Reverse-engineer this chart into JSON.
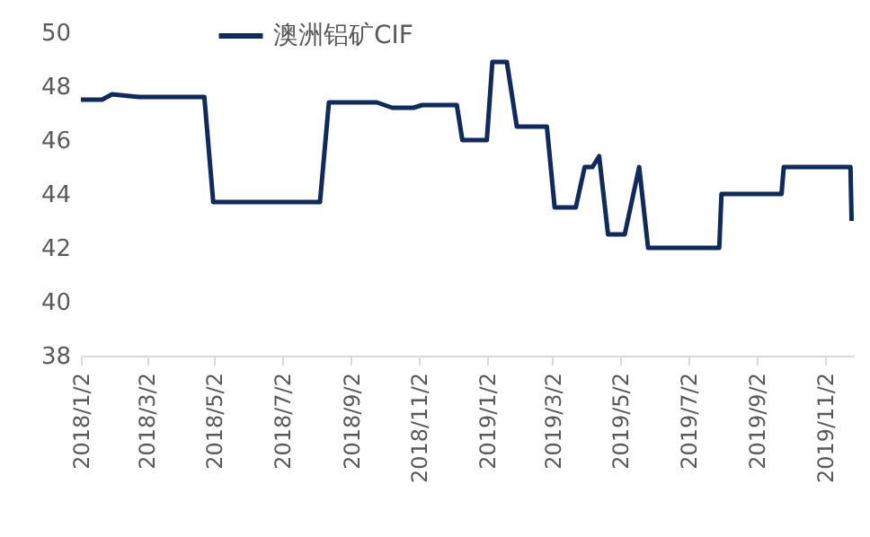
{
  "chart_data": {
    "type": "line",
    "legend": "top",
    "grid": false,
    "marker": "none",
    "line_style": "solid",
    "x": [
      "2018-01-02",
      "2018-01-21",
      "2018-01-30",
      "2018-02-23",
      "2018-04-23",
      "2018-05-01",
      "2018-08-05",
      "2018-08-13",
      "2018-09-25",
      "2018-10-09",
      "2018-10-28",
      "2018-11-05",
      "2018-12-06",
      "2018-12-11",
      "2019-01-02",
      "2019-01-07",
      "2019-01-20",
      "2019-01-29",
      "2019-02-25",
      "2019-03-04",
      "2019-03-23",
      "2019-03-31",
      "2019-04-07",
      "2019-04-13",
      "2019-04-21",
      "2019-05-06",
      "2019-05-19",
      "2019-05-27",
      "2019-07-30",
      "2019-08-01",
      "2019-09-24",
      "2019-09-26",
      "2019-11-25",
      "2019-11-26"
    ],
    "series": [
      {
        "name": "澳洲铝矿CIF",
        "color": "#0e2a5e",
        "values": [
          47.5,
          47.5,
          47.7,
          47.6,
          47.6,
          43.7,
          43.7,
          47.4,
          47.4,
          47.2,
          47.2,
          47.3,
          47.3,
          46,
          46,
          48.9,
          48.9,
          46.5,
          46.5,
          43.5,
          43.5,
          45,
          45,
          45.4,
          42.5,
          42.5,
          45,
          42,
          42,
          44,
          44,
          45,
          45,
          43
        ]
      }
    ],
    "xlim": [
      "2018-01-02",
      "2019-11-28"
    ],
    "xticks": [
      {
        "value": "2018-01-02",
        "label": "2018/1/2"
      },
      {
        "value": "2018-03-02",
        "label": "2018/3/2"
      },
      {
        "value": "2018-05-02",
        "label": "2018/5/2"
      },
      {
        "value": "2018-07-02",
        "label": "2018/7/2"
      },
      {
        "value": "2018-09-02",
        "label": "2018/9/2"
      },
      {
        "value": "2018-11-02",
        "label": "2018/11/2"
      },
      {
        "value": "2019-01-02",
        "label": "2019/1/2"
      },
      {
        "value": "2019-03-02",
        "label": "2019/3/2"
      },
      {
        "value": "2019-05-02",
        "label": "2019/5/2"
      },
      {
        "value": "2019-07-02",
        "label": "2019/7/2"
      },
      {
        "value": "2019-09-02",
        "label": "2019/9/2"
      },
      {
        "value": "2019-11-02",
        "label": "2019/11/2"
      }
    ],
    "ylim": [
      38,
      50
    ],
    "yticks": [
      38,
      40,
      42,
      44,
      46,
      48,
      50
    ]
  }
}
